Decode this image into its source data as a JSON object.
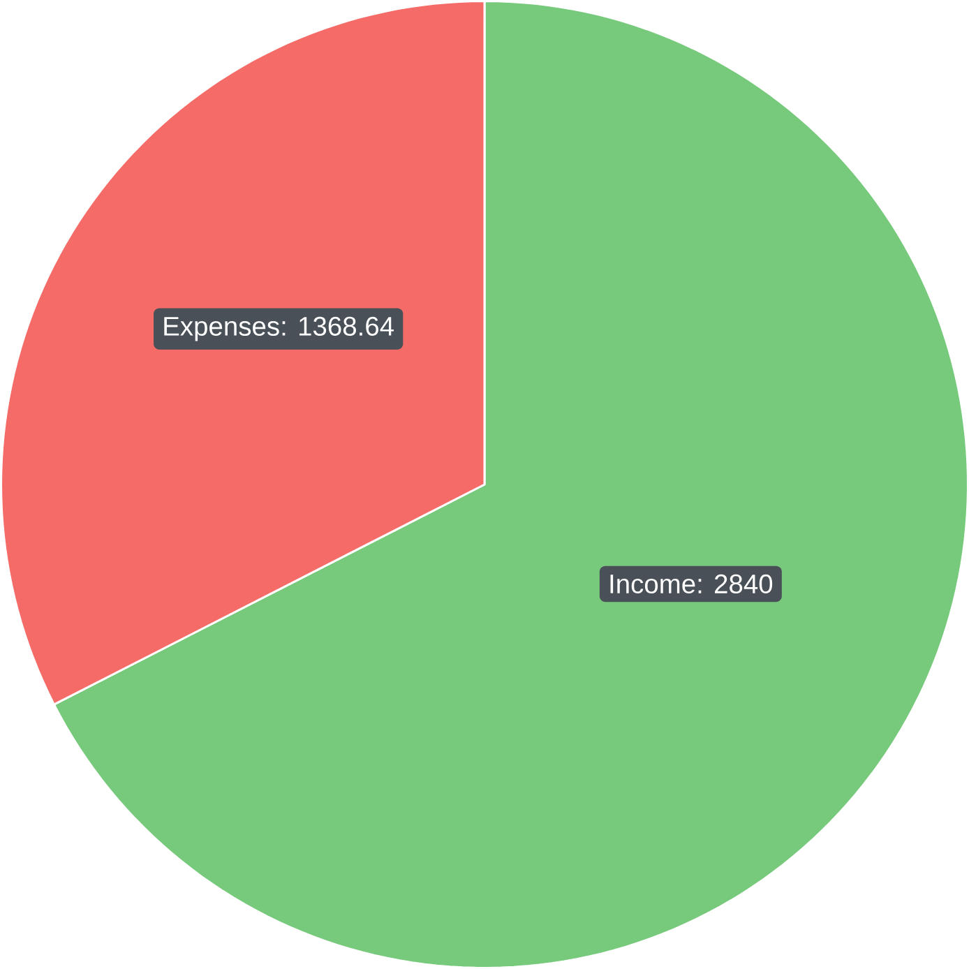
{
  "chart_data": {
    "type": "pie",
    "categories": [
      null,
      null
    ],
    "values": [
      2840,
      1368.64
    ],
    "colors": [
      "#77c97c",
      "#f56b67"
    ],
    "value_labels": [
      "Income: 2840",
      "Expenses: 1368.64"
    ]
  }
}
